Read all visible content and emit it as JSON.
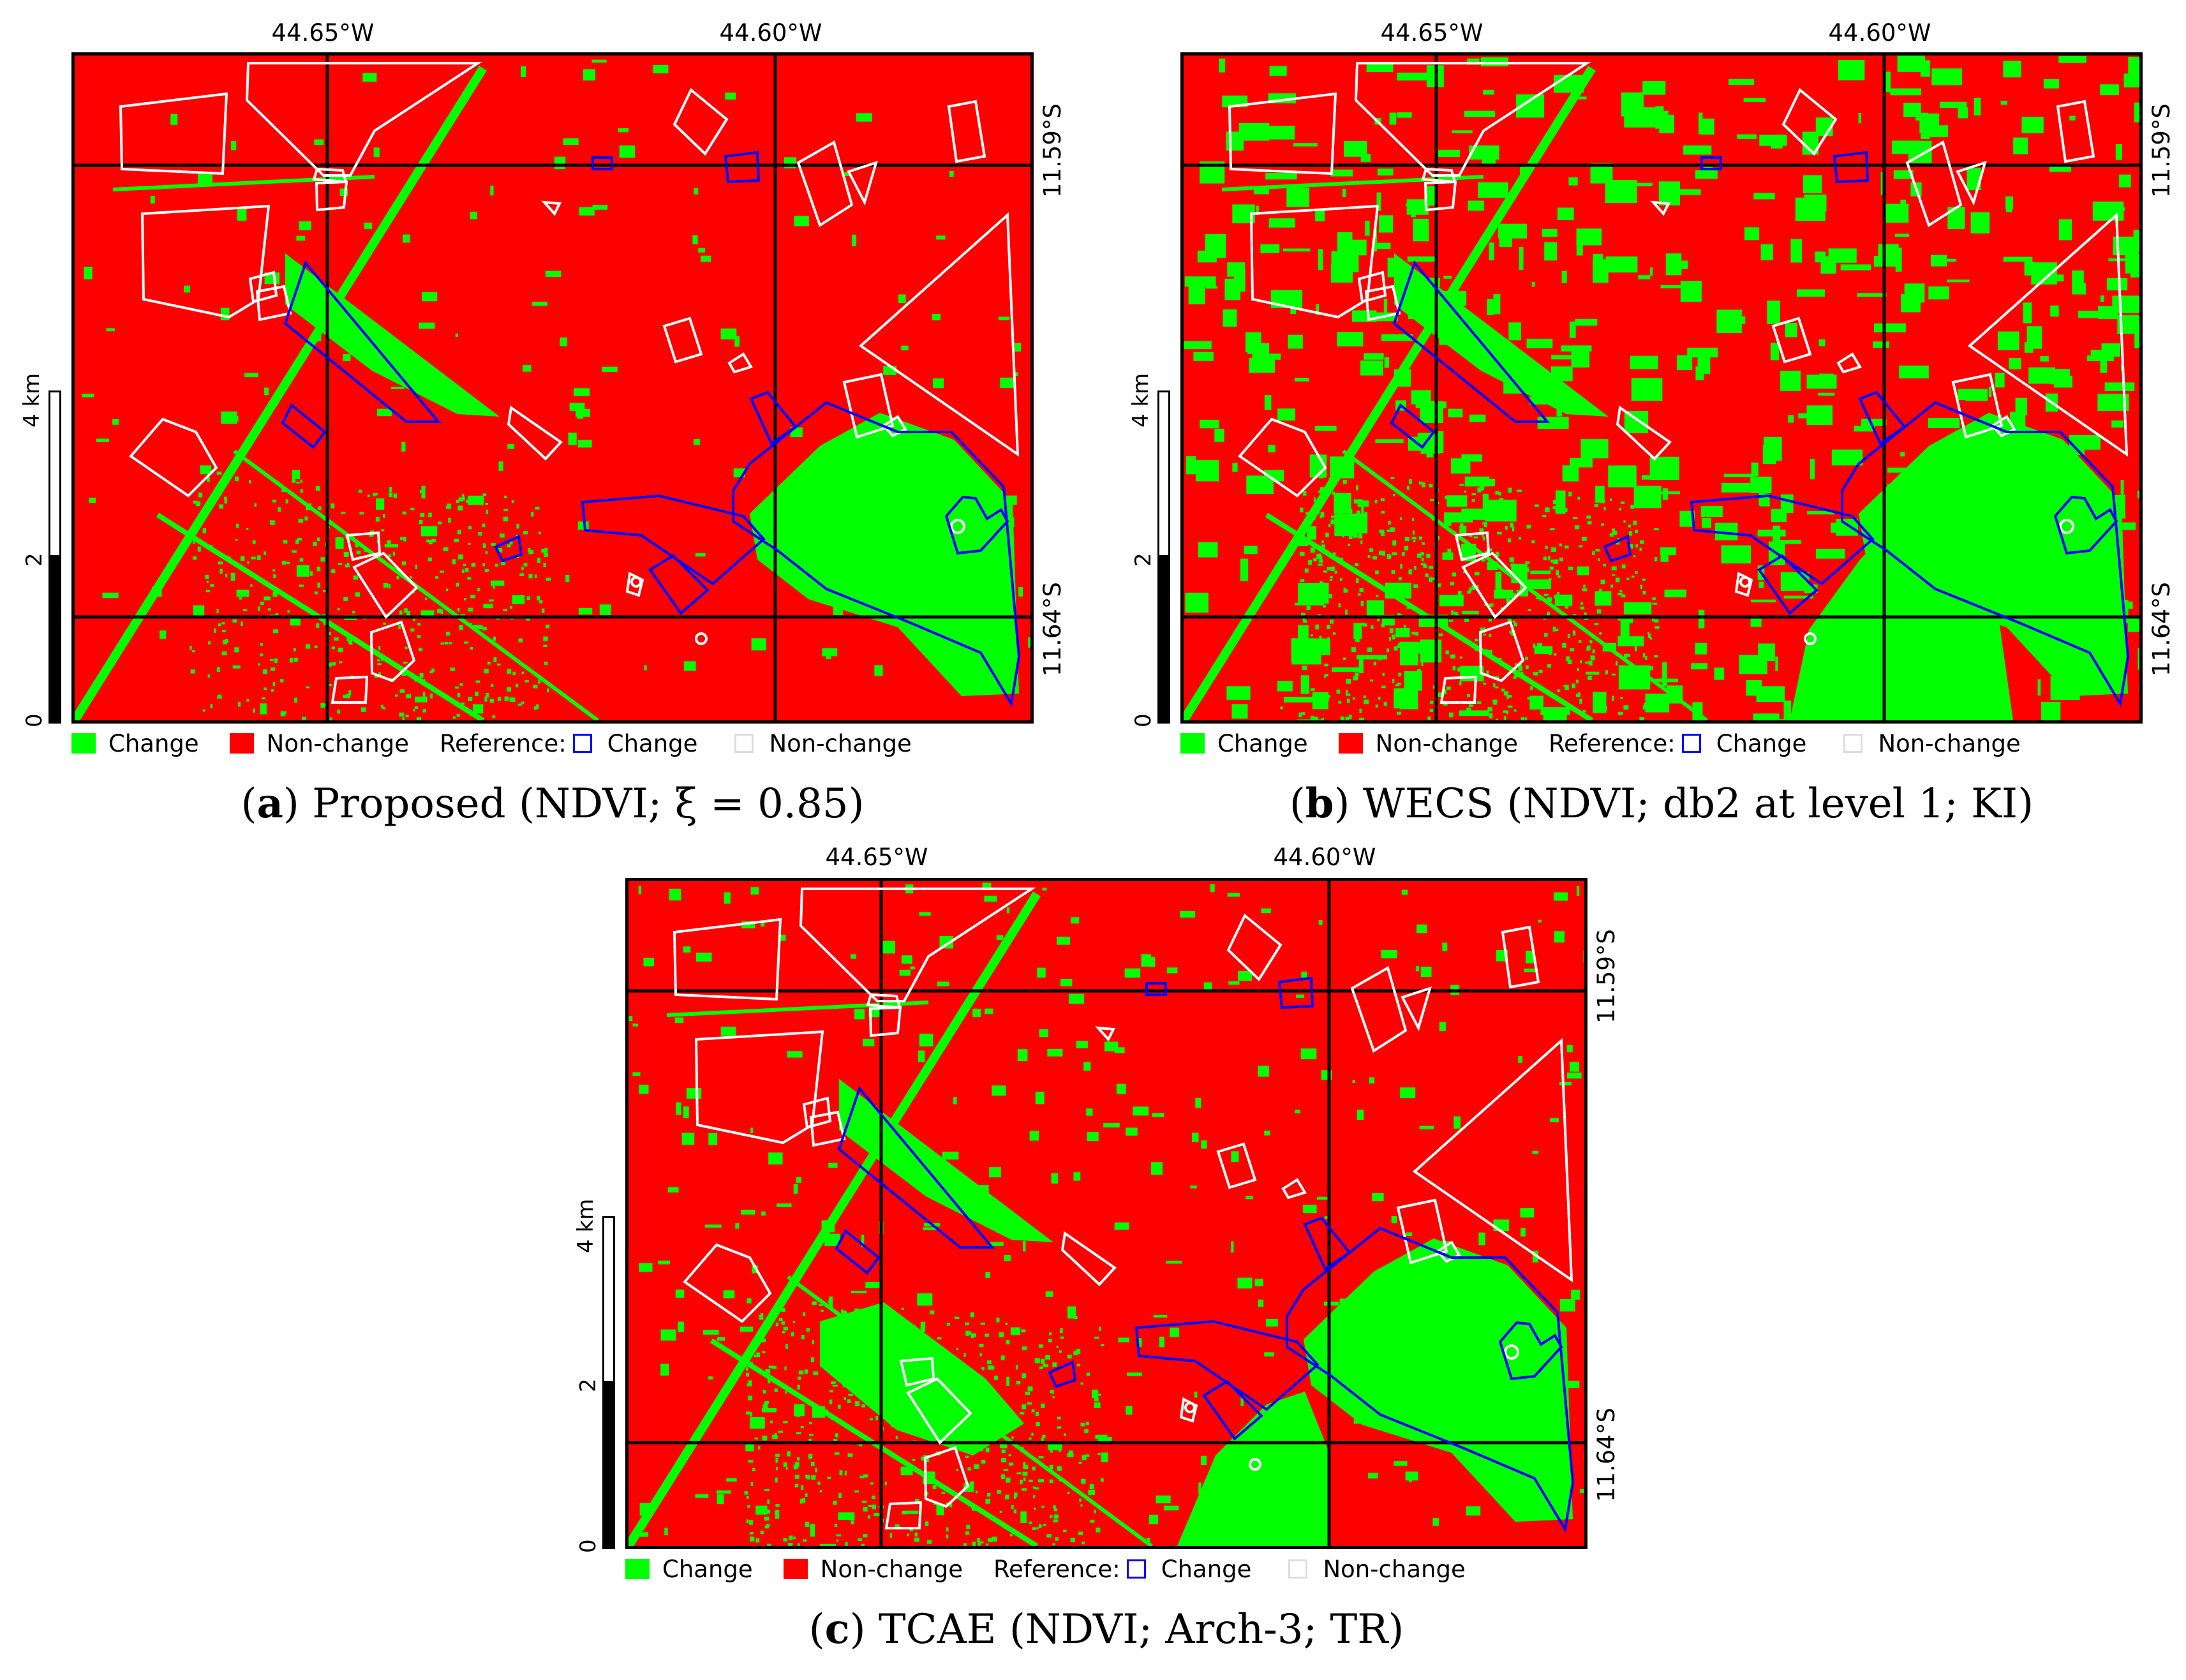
{
  "colors": {
    "change": "#00ff00",
    "non_change": "#ff0000",
    "reference_change": "#0000ff",
    "reference_non_change": "#ffffff",
    "grid": "#000000"
  },
  "coordinates": {
    "lon_left": "44.65°W",
    "lon_right": "44.60°W",
    "lat_top": "11.59°S",
    "lat_bottom": "11.64°S"
  },
  "scale_bar": {
    "unit_label": "4 km",
    "tick_mid": "2",
    "tick_zero": "0"
  },
  "legend": {
    "change": "Change",
    "non_change": "Non-change",
    "reference": "Reference:",
    "ref_change": "Change",
    "ref_non_change": "Non-change"
  },
  "panels": [
    {
      "letter": "a",
      "caption_rest": "Proposed (NDVI; ξ = 0.85)",
      "change_density": 0.08
    },
    {
      "letter": "b",
      "caption_rest": "WECS (NDVI; db2 at level 1; KI)",
      "change_density": 0.3
    },
    {
      "letter": "c",
      "caption_rest": "TCAE (NDVI; Arch-3; TR)",
      "change_density": 0.16
    }
  ]
}
